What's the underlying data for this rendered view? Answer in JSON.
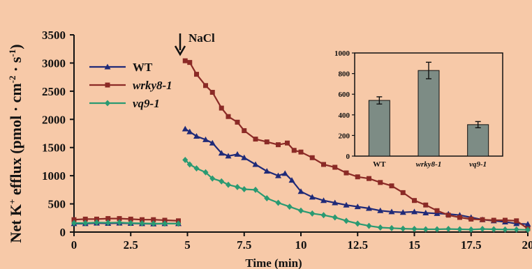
{
  "chart_data": [
    {
      "type": "line",
      "ylabel_prefix": "Net K",
      "ylabel_plus": "+",
      "ylabel_mid": " efflux (pmol · cm",
      "ylabel_sup2": "-2",
      "ylabel_dot": " · s",
      "ylabel_sup1": "-1",
      "ylabel_end": ")",
      "xlabel": "Time (min)",
      "xlim": [
        0,
        20
      ],
      "ylim": [
        0,
        3500
      ],
      "xticks": [
        "0",
        "2.5",
        "5",
        "7.5",
        "10",
        "12.5",
        "15",
        "17.5",
        "20"
      ],
      "yticks": [
        "0",
        "500",
        "1000",
        "1500",
        "2000",
        "2500",
        "3000",
        "3500"
      ],
      "annotation": "NaCl",
      "annotation_x": 4.8,
      "legend_position": "top-left",
      "series": [
        {
          "name": "WT",
          "color": "#1f2a78",
          "marker": "triangle",
          "points": [
            [
              0,
              150
            ],
            [
              0.5,
              150
            ],
            [
              1,
              160
            ],
            [
              1.5,
              155
            ],
            [
              2,
              160
            ],
            [
              2.5,
              155
            ],
            [
              3,
              150
            ],
            [
              3.5,
              145
            ],
            [
              4,
              150
            ],
            [
              4.6,
              150
            ],
            [
              4.9,
              1830
            ],
            [
              5.1,
              1780
            ],
            [
              5.4,
              1700
            ],
            [
              5.8,
              1640
            ],
            [
              6.1,
              1580
            ],
            [
              6.5,
              1400
            ],
            [
              6.8,
              1350
            ],
            [
              7.2,
              1380
            ],
            [
              7.5,
              1320
            ],
            [
              8,
              1200
            ],
            [
              8.5,
              1080
            ],
            [
              9,
              1000
            ],
            [
              9.3,
              1040
            ],
            [
              9.6,
              920
            ],
            [
              10,
              720
            ],
            [
              10.5,
              620
            ],
            [
              11,
              560
            ],
            [
              11.5,
              520
            ],
            [
              12,
              480
            ],
            [
              12.5,
              450
            ],
            [
              13,
              420
            ],
            [
              13.5,
              380
            ],
            [
              14,
              360
            ],
            [
              14.5,
              350
            ],
            [
              15,
              360
            ],
            [
              15.5,
              340
            ],
            [
              16,
              330
            ],
            [
              16.5,
              320
            ],
            [
              17,
              300
            ],
            [
              17.5,
              260
            ],
            [
              18,
              220
            ],
            [
              18.5,
              200
            ],
            [
              19,
              180
            ],
            [
              19.5,
              150
            ],
            [
              20,
              140
            ]
          ]
        },
        {
          "name": "wrky8-1",
          "color": "#8b2a26",
          "marker": "square",
          "points": [
            [
              0,
              220
            ],
            [
              0.5,
              230
            ],
            [
              1,
              230
            ],
            [
              1.5,
              240
            ],
            [
              2,
              240
            ],
            [
              2.5,
              230
            ],
            [
              3,
              220
            ],
            [
              3.5,
              220
            ],
            [
              4,
              210
            ],
            [
              4.6,
              200
            ],
            [
              4.9,
              3040
            ],
            [
              5.1,
              3010
            ],
            [
              5.4,
              2800
            ],
            [
              5.8,
              2600
            ],
            [
              6.1,
              2480
            ],
            [
              6.5,
              2200
            ],
            [
              6.8,
              2050
            ],
            [
              7.2,
              1950
            ],
            [
              7.5,
              1800
            ],
            [
              8,
              1650
            ],
            [
              8.5,
              1600
            ],
            [
              9,
              1550
            ],
            [
              9.4,
              1580
            ],
            [
              9.7,
              1450
            ],
            [
              10,
              1420
            ],
            [
              10.5,
              1320
            ],
            [
              11,
              1200
            ],
            [
              11.5,
              1150
            ],
            [
              12,
              1050
            ],
            [
              12.5,
              980
            ],
            [
              13,
              950
            ],
            [
              13.5,
              880
            ],
            [
              14,
              820
            ],
            [
              14.5,
              700
            ],
            [
              15,
              560
            ],
            [
              15.5,
              480
            ],
            [
              16,
              380
            ],
            [
              16.5,
              300
            ],
            [
              17,
              260
            ],
            [
              17.5,
              230
            ],
            [
              18,
              220
            ],
            [
              18.5,
              210
            ],
            [
              19,
              210
            ],
            [
              19.5,
              200
            ],
            [
              20,
              60
            ]
          ]
        },
        {
          "name": "vq9-1",
          "color": "#2a9a72",
          "marker": "diamond",
          "points": [
            [
              0,
              160
            ],
            [
              0.5,
              160
            ],
            [
              1,
              170
            ],
            [
              1.5,
              165
            ],
            [
              2,
              170
            ],
            [
              2.5,
              160
            ],
            [
              3,
              155
            ],
            [
              3.5,
              150
            ],
            [
              4,
              150
            ],
            [
              4.6,
              150
            ],
            [
              4.9,
              1280
            ],
            [
              5.1,
              1200
            ],
            [
              5.4,
              1130
            ],
            [
              5.8,
              1060
            ],
            [
              6.1,
              950
            ],
            [
              6.5,
              900
            ],
            [
              6.8,
              840
            ],
            [
              7.2,
              800
            ],
            [
              7.5,
              760
            ],
            [
              8,
              750
            ],
            [
              8.5,
              600
            ],
            [
              9,
              520
            ],
            [
              9.5,
              450
            ],
            [
              10,
              380
            ],
            [
              10.5,
              330
            ],
            [
              11,
              300
            ],
            [
              11.5,
              260
            ],
            [
              12,
              200
            ],
            [
              12.5,
              150
            ],
            [
              13,
              110
            ],
            [
              13.5,
              80
            ],
            [
              14,
              70
            ],
            [
              14.5,
              60
            ],
            [
              15,
              55
            ],
            [
              15.5,
              50
            ],
            [
              16,
              50
            ],
            [
              16.5,
              55
            ],
            [
              17,
              50
            ],
            [
              17.5,
              45
            ],
            [
              18,
              55
            ],
            [
              18.5,
              50
            ],
            [
              19,
              45
            ],
            [
              19.5,
              45
            ],
            [
              20,
              40
            ]
          ]
        }
      ]
    },
    {
      "type": "bar",
      "categories": [
        "WT",
        "wrky8-1",
        "vq9-1"
      ],
      "values": [
        540,
        830,
        305
      ],
      "errors": [
        35,
        80,
        30
      ],
      "ylim": [
        0,
        1000
      ],
      "yticks": [
        "0",
        "200",
        "400",
        "600",
        "800",
        "1000"
      ],
      "bar_color": "#7d8c85"
    }
  ]
}
